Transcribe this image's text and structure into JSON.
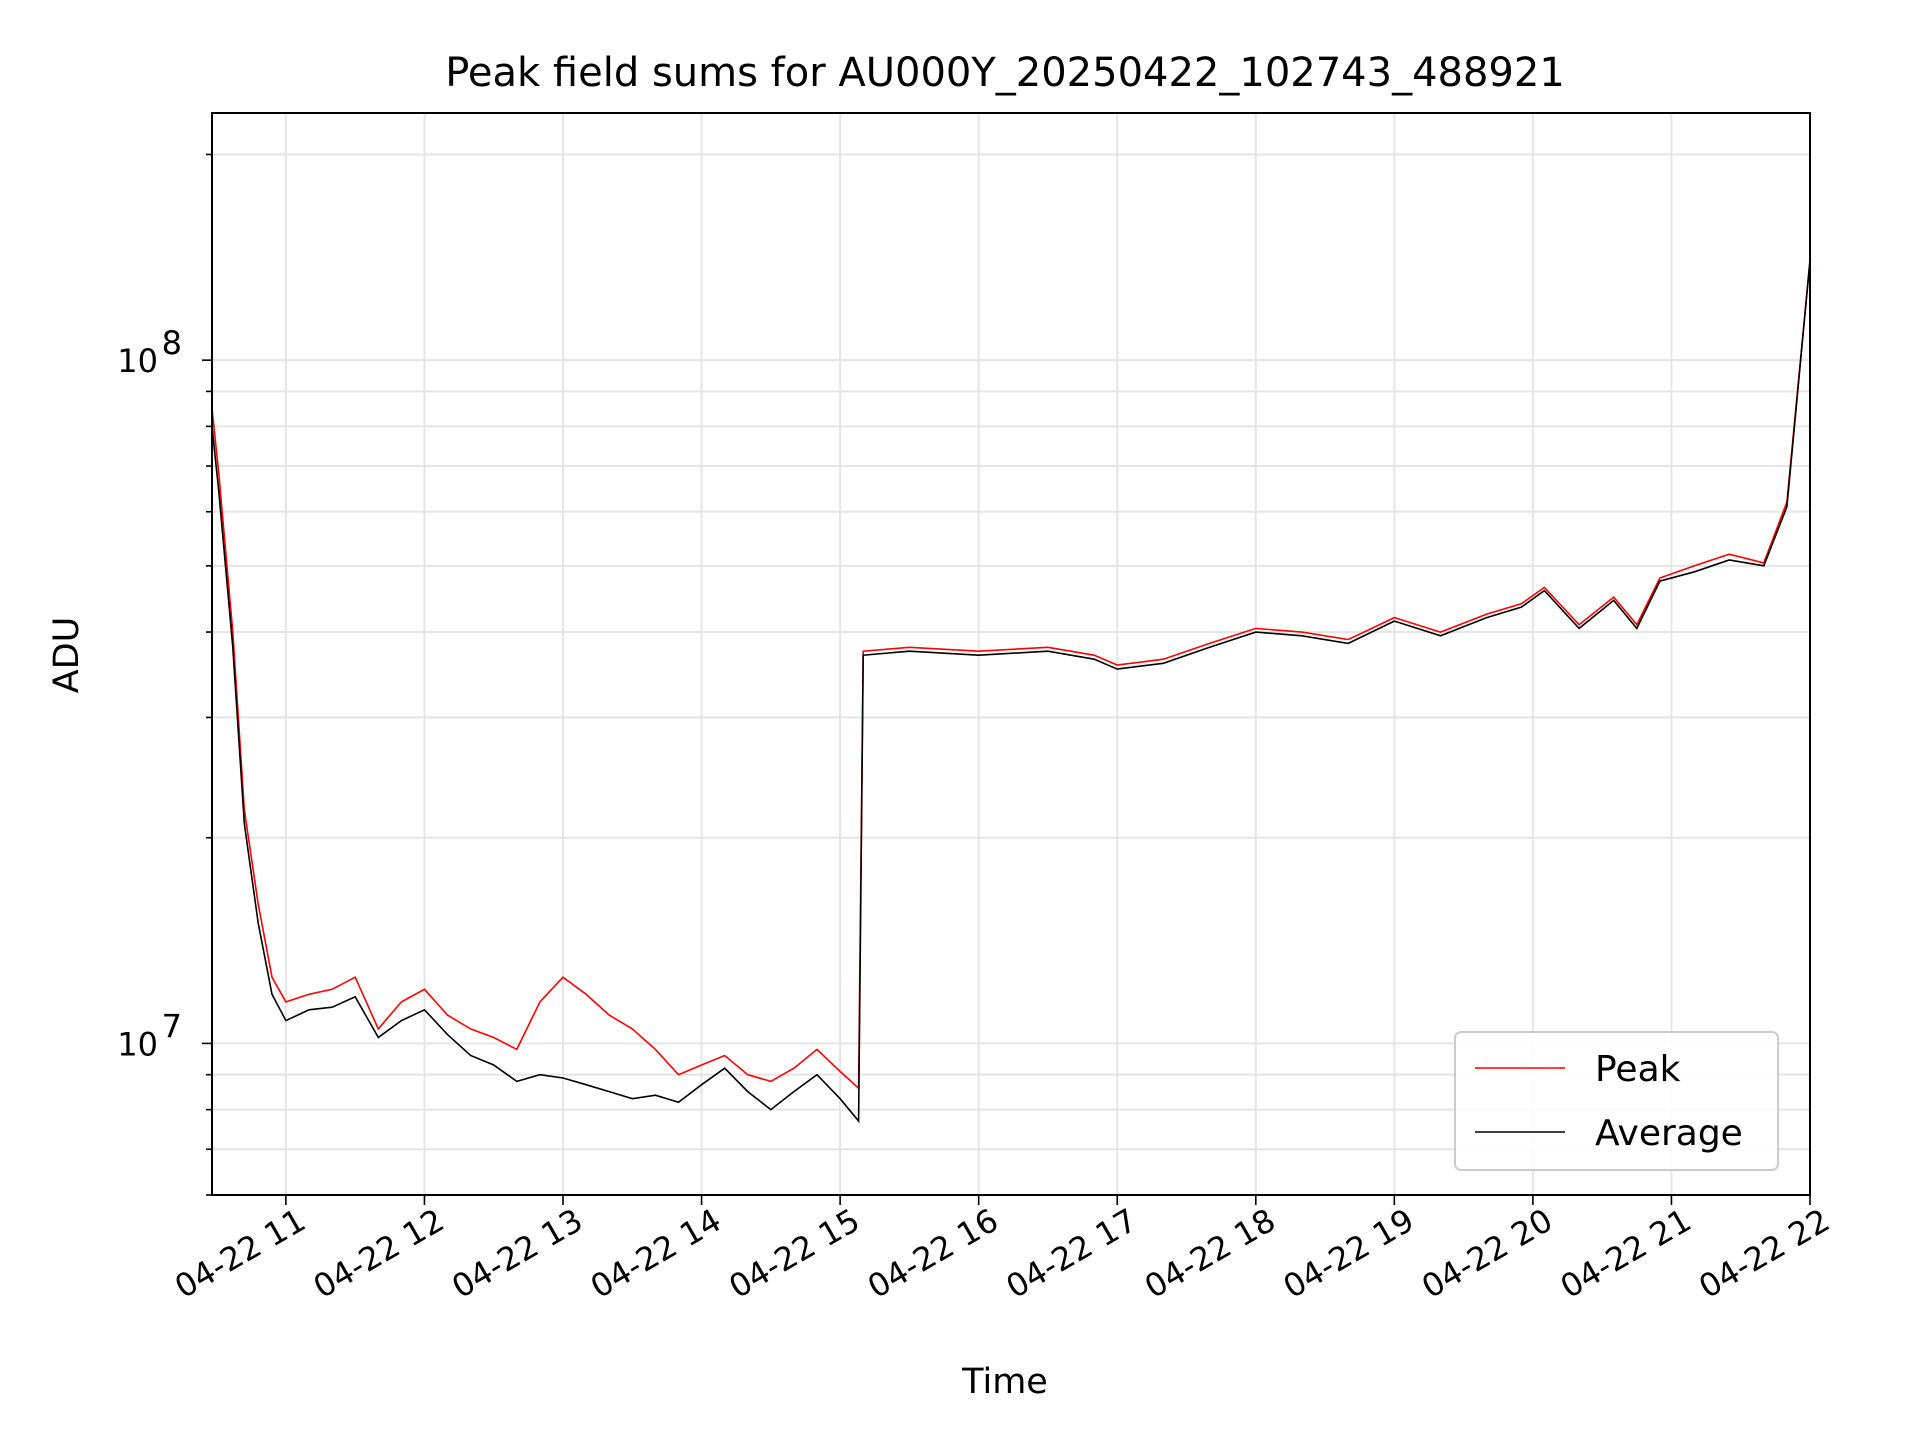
{
  "chart_data": {
    "type": "line",
    "title": "Peak field sums for AU000Y_20250422_102743_488921",
    "xlabel": "Time",
    "ylabel": "ADU",
    "y_scale": "log",
    "grid": true,
    "legend_position": "lower-right",
    "xlim": [
      "04-22 10:28",
      "04-22 22:00"
    ],
    "ylim": [
      6000000,
      230000000
    ],
    "x_ticks": [
      "04-22 11",
      "04-22 12",
      "04-22 13",
      "04-22 14",
      "04-22 15",
      "04-22 16",
      "04-22 17",
      "04-22 18",
      "04-22 19",
      "04-22 20",
      "04-22 21",
      "04-22 22"
    ],
    "y_ticks": [
      {
        "value": 10000000,
        "base": "10",
        "exp": "7"
      },
      {
        "value": 100000000,
        "base": "10",
        "exp": "8"
      }
    ],
    "series": [
      {
        "name": "Peak",
        "color": "#ff0000",
        "x": [
          "04-22 10:28",
          "04-22 10:31",
          "04-22 10:37",
          "04-22 10:42",
          "04-22 10:48",
          "04-22 10:54",
          "04-22 11:00",
          "04-22 11:10",
          "04-22 11:20",
          "04-22 11:30",
          "04-22 11:40",
          "04-22 11:50",
          "04-22 12:00",
          "04-22 12:10",
          "04-22 12:20",
          "04-22 12:30",
          "04-22 12:40",
          "04-22 12:50",
          "04-22 13:00",
          "04-22 13:10",
          "04-22 13:20",
          "04-22 13:30",
          "04-22 13:40",
          "04-22 13:50",
          "04-22 14:00",
          "04-22 14:10",
          "04-22 14:20",
          "04-22 14:30",
          "04-22 14:40",
          "04-22 14:50",
          "04-22 15:00",
          "04-22 15:08",
          "04-22 15:10",
          "04-22 15:30",
          "04-22 16:00",
          "04-22 16:30",
          "04-22 16:50",
          "04-22 17:00",
          "04-22 17:20",
          "04-22 17:40",
          "04-22 18:00",
          "04-22 18:20",
          "04-22 18:40",
          "04-22 19:00",
          "04-22 19:20",
          "04-22 19:40",
          "04-22 19:55",
          "04-22 20:05",
          "04-22 20:20",
          "04-22 20:35",
          "04-22 20:45",
          "04-22 20:55",
          "04-22 21:10",
          "04-22 21:25",
          "04-22 21:40",
          "04-22 21:50",
          "04-22 22:00"
        ],
        "y": [
          85000000,
          68000000,
          40000000,
          22000000,
          16000000,
          12500000,
          11500000,
          11800000,
          12000000,
          12500000,
          10500000,
          11500000,
          12000000,
          11000000,
          10500000,
          10200000,
          9800000,
          11500000,
          12500000,
          11800000,
          11000000,
          10500000,
          9800000,
          9000000,
          9300000,
          9600000,
          9000000,
          8800000,
          9200000,
          9800000,
          9100000,
          8600000,
          37500000,
          38000000,
          37500000,
          38000000,
          37000000,
          35800000,
          36500000,
          38500000,
          40500000,
          40000000,
          39000000,
          42000000,
          40000000,
          42500000,
          44000000,
          46500000,
          41000000,
          45000000,
          41000000,
          48000000,
          50000000,
          52000000,
          50500000,
          62000000,
          140000000
        ]
      },
      {
        "name": "Average",
        "color": "#000000",
        "x": [
          "04-22 10:28",
          "04-22 10:31",
          "04-22 10:37",
          "04-22 10:42",
          "04-22 10:48",
          "04-22 10:54",
          "04-22 11:00",
          "04-22 11:10",
          "04-22 11:20",
          "04-22 11:30",
          "04-22 11:40",
          "04-22 11:50",
          "04-22 12:00",
          "04-22 12:10",
          "04-22 12:20",
          "04-22 12:30",
          "04-22 12:40",
          "04-22 12:50",
          "04-22 13:00",
          "04-22 13:10",
          "04-22 13:20",
          "04-22 13:30",
          "04-22 13:40",
          "04-22 13:50",
          "04-22 14:00",
          "04-22 14:10",
          "04-22 14:20",
          "04-22 14:30",
          "04-22 14:40",
          "04-22 14:50",
          "04-22 15:00",
          "04-22 15:08",
          "04-22 15:10",
          "04-22 15:30",
          "04-22 16:00",
          "04-22 16:30",
          "04-22 16:50",
          "04-22 17:00",
          "04-22 17:20",
          "04-22 17:40",
          "04-22 18:00",
          "04-22 18:20",
          "04-22 18:40",
          "04-22 19:00",
          "04-22 19:20",
          "04-22 19:40",
          "04-22 19:55",
          "04-22 20:05",
          "04-22 20:20",
          "04-22 20:35",
          "04-22 20:45",
          "04-22 20:55",
          "04-22 21:10",
          "04-22 21:25",
          "04-22 21:40",
          "04-22 21:50",
          "04-22 22:00"
        ],
        "y": [
          80000000,
          64000000,
          38000000,
          21000000,
          15000000,
          11800000,
          10800000,
          11200000,
          11300000,
          11700000,
          10200000,
          10800000,
          11200000,
          10300000,
          9600000,
          9300000,
          8800000,
          9000000,
          8900000,
          8700000,
          8500000,
          8300000,
          8400000,
          8200000,
          8700000,
          9200000,
          8500000,
          8000000,
          8500000,
          9000000,
          8300000,
          7700000,
          37000000,
          37500000,
          37000000,
          37500000,
          36500000,
          35300000,
          36000000,
          38000000,
          40000000,
          39500000,
          38500000,
          41500000,
          39500000,
          42000000,
          43500000,
          46000000,
          40500000,
          44500000,
          40500000,
          47500000,
          49000000,
          51000000,
          50000000,
          61000000,
          140000000
        ]
      }
    ]
  }
}
